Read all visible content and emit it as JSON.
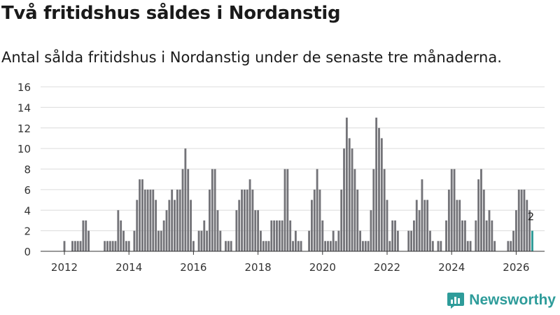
{
  "title": "Två fritidshus såldes i Nordanstig",
  "subtitle": "Antal sålda fritidshus i Nordanstig under de senaste tre månaderna.",
  "brand": {
    "name": "Newsworthy",
    "logo_icon": "bar-chart-logo-icon",
    "color": "#2e9c9a"
  },
  "chart_data": {
    "type": "bar",
    "title": "Två fritidshus såldes i Nordanstig",
    "subtitle": "Antal sålda fritidshus i Nordanstig under de senaste tre månaderna.",
    "xlabel": "",
    "ylabel": "",
    "ylim": [
      0,
      16
    ],
    "yticks": [
      0,
      2,
      4,
      6,
      8,
      10,
      12,
      14,
      16
    ],
    "xticks": [
      2012,
      2014,
      2016,
      2018,
      2020,
      2022,
      2024,
      2026
    ],
    "x_unit": "month",
    "x_start": "2011-12",
    "grid": true,
    "bar_color": "#737378",
    "highlight_color": "#2a9a96",
    "highlight_last": true,
    "last_value_label": "2",
    "values": [
      0,
      1,
      0,
      0,
      1,
      1,
      1,
      1,
      3,
      3,
      2,
      0,
      0,
      0,
      0,
      0,
      1,
      1,
      1,
      1,
      1,
      4,
      3,
      2,
      1,
      1,
      0,
      2,
      5,
      7,
      7,
      6,
      6,
      6,
      6,
      5,
      2,
      2,
      3,
      4,
      5,
      6,
      5,
      6,
      6,
      8,
      10,
      8,
      5,
      1,
      0,
      2,
      2,
      3,
      2,
      6,
      8,
      8,
      4,
      2,
      0,
      1,
      1,
      1,
      0,
      4,
      5,
      6,
      6,
      6,
      7,
      6,
      4,
      4,
      2,
      1,
      1,
      1,
      3,
      3,
      3,
      3,
      3,
      8,
      8,
      3,
      1,
      2,
      1,
      1,
      0,
      0,
      2,
      5,
      6,
      8,
      6,
      3,
      1,
      1,
      1,
      2,
      1,
      2,
      6,
      10,
      13,
      11,
      10,
      8,
      6,
      2,
      1,
      1,
      1,
      4,
      8,
      13,
      12,
      11,
      8,
      5,
      1,
      3,
      3,
      2,
      0,
      0,
      0,
      2,
      2,
      3,
      5,
      4,
      7,
      5,
      5,
      2,
      1,
      0,
      1,
      1,
      0,
      3,
      6,
      8,
      8,
      5,
      5,
      3,
      3,
      1,
      1,
      0,
      3,
      7,
      8,
      6,
      3,
      4,
      3,
      1,
      0,
      0,
      0,
      0,
      1,
      1,
      2,
      4,
      6,
      6,
      6,
      5,
      4,
      2
    ]
  }
}
